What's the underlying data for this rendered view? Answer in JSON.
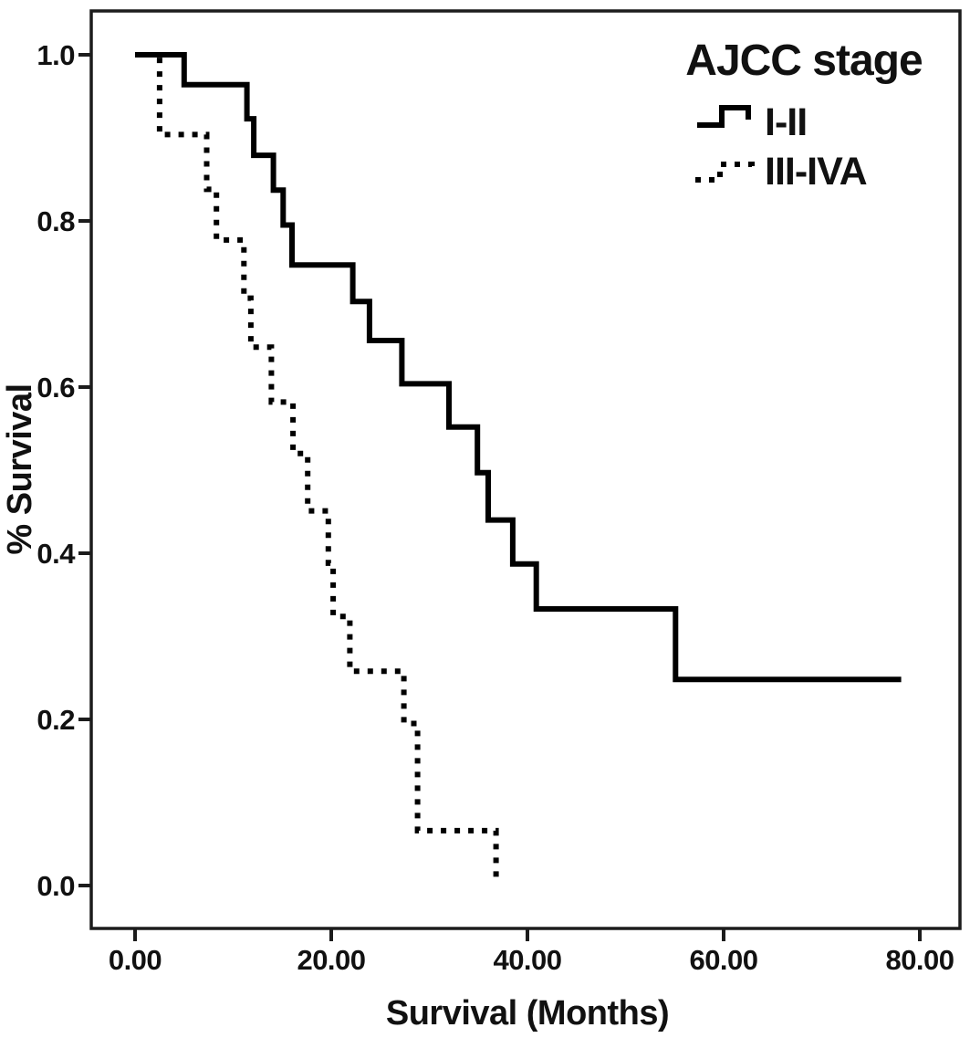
{
  "figure": {
    "background_color": "#ffffff",
    "line_color": "#000000"
  },
  "chart_data": {
    "type": "line",
    "subtype": "kaplan-meier-step-survival",
    "title": "",
    "xlabel": "Survival (Months)",
    "ylabel": "% Survival",
    "xlim": [
      -4.5,
      84.1
    ],
    "ylim": [
      -0.052,
      1.052
    ],
    "grid": "off",
    "x_ticks": [
      0,
      20,
      40,
      60,
      80
    ],
    "x_tick_labels": [
      "0.00",
      "20.00",
      "40.00",
      "60.00",
      "80.00"
    ],
    "y_ticks": [
      0.0,
      0.2,
      0.4,
      0.6,
      0.8,
      1.0
    ],
    "y_tick_labels": [
      "0.0",
      "0.2",
      "0.4",
      "0.6",
      "0.8",
      "1.0"
    ],
    "legend": {
      "title": "AJCC stage",
      "position": "top-right-inside",
      "entries": [
        {
          "label": "I-II",
          "line_style": "solid"
        },
        {
          "label": "III-IVA",
          "line_style": "dotted"
        }
      ]
    },
    "series": [
      {
        "label": "I-II",
        "line_style": "solid",
        "line_color": "#000000",
        "points_months_vs_survival": [
          [
            0,
            1.0
          ],
          [
            5.0,
            0.964
          ],
          [
            11.4,
            0.923
          ],
          [
            12.1,
            0.879
          ],
          [
            14.1,
            0.837
          ],
          [
            15.1,
            0.795
          ],
          [
            16.0,
            0.747
          ],
          [
            22.2,
            0.703
          ],
          [
            23.9,
            0.656
          ],
          [
            27.2,
            0.604
          ],
          [
            32.0,
            0.552
          ],
          [
            34.9,
            0.497
          ],
          [
            36.0,
            0.44
          ],
          [
            38.5,
            0.387
          ],
          [
            40.9,
            0.333
          ],
          [
            55.1,
            0.248
          ]
        ],
        "end_time_months": 78.1
      },
      {
        "label": "III-IVA",
        "line_style": "dotted",
        "line_color": "#000000",
        "points_months_vs_survival": [
          [
            0,
            1.0
          ],
          [
            2.5,
            0.904
          ],
          [
            7.3,
            0.838
          ],
          [
            8.3,
            0.777
          ],
          [
            11.1,
            0.707
          ],
          [
            11.8,
            0.648
          ],
          [
            13.9,
            0.582
          ],
          [
            16.1,
            0.52
          ],
          [
            17.6,
            0.451
          ],
          [
            19.7,
            0.388
          ],
          [
            20.2,
            0.324
          ],
          [
            21.9,
            0.258
          ],
          [
            27.4,
            0.195
          ],
          [
            28.8,
            0.066
          ],
          [
            36.8,
            0.002
          ]
        ],
        "end_time_months": 36.8
      }
    ]
  }
}
